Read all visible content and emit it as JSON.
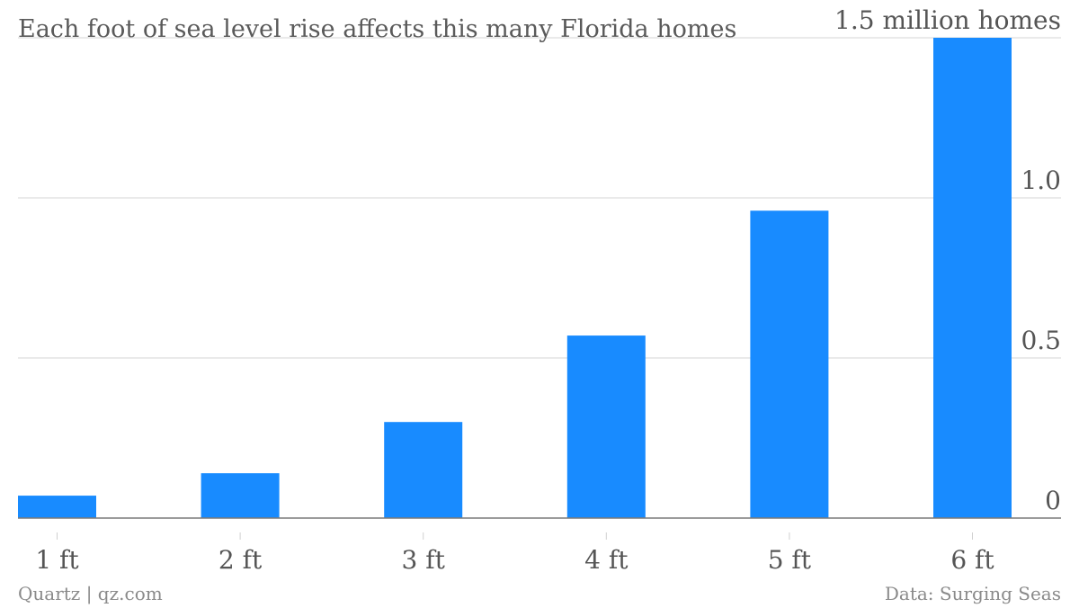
{
  "chart_data": {
    "type": "bar",
    "title": "Each foot of sea level rise affects this many Florida homes",
    "categories": [
      "1 ft",
      "2 ft",
      "3 ft",
      "4 ft",
      "5 ft",
      "6 ft"
    ],
    "values": [
      0.07,
      0.14,
      0.3,
      0.57,
      0.96,
      1.5
    ],
    "ylim": [
      0,
      1.5
    ],
    "yticks": [
      0,
      0.5,
      1.0,
      1.5
    ],
    "ytick_labels": [
      "0",
      "0.5",
      "1.0",
      "1.5 million homes"
    ],
    "axis_position": "right",
    "grid": true,
    "bar_color": "#188bff"
  },
  "footer": {
    "source_left": "Quartz | qz.com",
    "source_right": "Data: Surging Seas"
  }
}
